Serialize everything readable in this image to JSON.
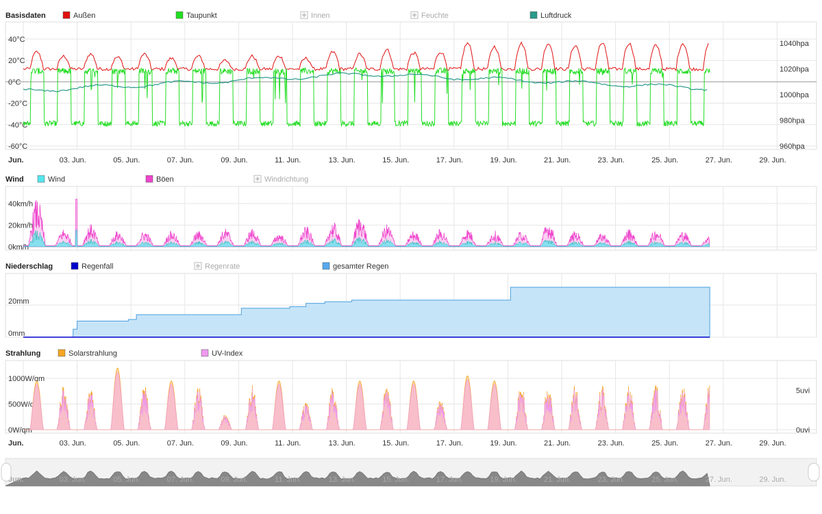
{
  "x_axis": {
    "ticks": [
      "Jun.",
      "03. Jun.",
      "05. Jun.",
      "07. Jun.",
      "09. Jun.",
      "11. Jun.",
      "13. Jun.",
      "15. Jun.",
      "17. Jun.",
      "19. Jun.",
      "21. Jun.",
      "23. Jun.",
      "25. Jun.",
      "27. Jun.",
      "29. Jun."
    ],
    "first_bold": true
  },
  "chart_data": [
    {
      "type": "line",
      "panel_title": "Basisdaten",
      "legend": [
        {
          "label": "Außen",
          "color": "#e01010",
          "enabled": true
        },
        {
          "label": "Taupunkt",
          "color": "#22dd22",
          "enabled": true
        },
        {
          "label": "Innen",
          "color": "#cccccc",
          "enabled": false
        },
        {
          "label": "Feuchte",
          "color": "#cccccc",
          "enabled": false
        },
        {
          "label": "Luftdruck",
          "color": "#2a9a8a",
          "enabled": true
        }
      ],
      "y_left": {
        "ticks": [
          "40°C",
          "20°C",
          "0°C",
          "-20°C",
          "-40°C",
          "-60°C"
        ],
        "range": [
          -60,
          40
        ]
      },
      "y_right": {
        "ticks": [
          "1040hpa",
          "1020hpa",
          "1000hpa",
          "980hpa",
          "960hpa"
        ],
        "range": [
          960,
          1040
        ]
      },
      "x_range_days": [
        1,
        30
      ],
      "data_end_day": 26.5,
      "series_profiles": {
        "Außen": {
          "daily_max_c": [
            28,
            24,
            26,
            23,
            26,
            22,
            24,
            20,
            24,
            24,
            22,
            28,
            26,
            30,
            27,
            28,
            36,
            33,
            36,
            36,
            34,
            36,
            36,
            34,
            36,
            36
          ],
          "night_min_c": 12
        },
        "Taupunkt": {
          "day_level_c": 10,
          "night_level_c": -40
        },
        "Luftdruck": {
          "start_hpa": 1003,
          "mid_hpa": 1016,
          "end_hpa": 1005
        }
      }
    },
    {
      "type": "area",
      "panel_title": "Wind",
      "legend": [
        {
          "label": "Wind",
          "color": "#55e6ee",
          "enabled": true
        },
        {
          "label": "Böen",
          "color": "#ee44cc",
          "enabled": true
        },
        {
          "label": "Windrichtung",
          "color": "#cccccc",
          "enabled": false
        }
      ],
      "y_left": {
        "ticks": [
          "40km/h",
          "20km/h",
          "0km/h"
        ],
        "range": [
          0,
          40
        ]
      },
      "data_end_day": 26.5,
      "daily_gust_peak_kmh": [
        44,
        16,
        20,
        14,
        14,
        14,
        14,
        16,
        16,
        12,
        18,
        22,
        28,
        20,
        14,
        16,
        16,
        14,
        14,
        22,
        14,
        12,
        16,
        16,
        14,
        10
      ]
    },
    {
      "type": "area",
      "panel_title": "Niederschlag",
      "legend": [
        {
          "label": "Regenfall",
          "color": "#0000cc",
          "enabled": true
        },
        {
          "label": "Regenrate",
          "color": "#cccccc",
          "enabled": false
        },
        {
          "label": "gesamter Regen",
          "color": "#55aaee",
          "enabled": true
        }
      ],
      "y_left": {
        "ticks": [
          "20mm",
          "0mm"
        ],
        "range": [
          0,
          40
        ]
      },
      "cumulative_steps": [
        {
          "day": 2.7,
          "mm": 0
        },
        {
          "day": 2.85,
          "mm": 5
        },
        {
          "day": 3.0,
          "mm": 10
        },
        {
          "day": 4.9,
          "mm": 11
        },
        {
          "day": 5.2,
          "mm": 14
        },
        {
          "day": 8.0,
          "mm": 14
        },
        {
          "day": 9.1,
          "mm": 18
        },
        {
          "day": 10.9,
          "mm": 19
        },
        {
          "day": 11.5,
          "mm": 21
        },
        {
          "day": 12.2,
          "mm": 22
        },
        {
          "day": 13.2,
          "mm": 23
        },
        {
          "day": 19.0,
          "mm": 23
        },
        {
          "day": 19.1,
          "mm": 31
        },
        {
          "day": 26.5,
          "mm": 31
        }
      ]
    },
    {
      "type": "area",
      "panel_title": "Strahlung",
      "legend": [
        {
          "label": "Solarstrahlung",
          "color": "#f5a623",
          "enabled": true
        },
        {
          "label": "UV-Index",
          "color": "#ee99ee",
          "enabled": true
        }
      ],
      "y_left": {
        "ticks": [
          "1000W/qm",
          "500W/qm",
          "0W/qm"
        ],
        "range": [
          0,
          1000
        ]
      },
      "y_right": {
        "ticks": [
          "5uvi",
          "0uvi"
        ],
        "range": [
          0,
          10
        ]
      },
      "data_end_day": 26.5,
      "daily_peak_wqm": [
        950,
        900,
        800,
        1200,
        880,
        950,
        880,
        300,
        900,
        950,
        600,
        850,
        950,
        900,
        950,
        600,
        1050,
        950,
        900,
        900,
        900,
        880,
        900,
        900,
        900,
        900
      ]
    }
  ]
}
